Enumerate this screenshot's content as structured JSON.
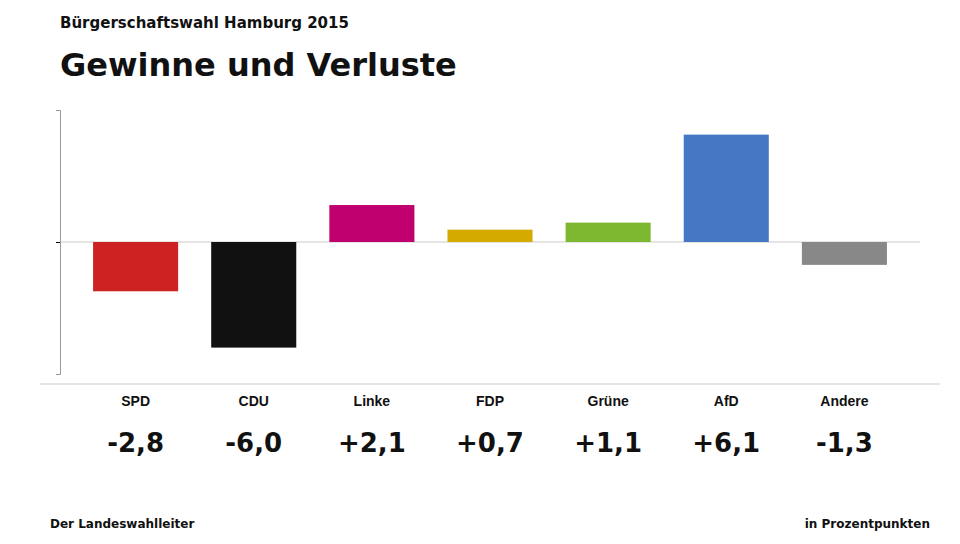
{
  "chart_data": {
    "type": "bar",
    "title": "Gewinne und Verluste",
    "subtitle": "Bürgerschaftswahl Hamburg 2015",
    "annotations": [
      "Der Landeswahlleiter",
      "in Prozentpunkten"
    ],
    "categories": [
      "SPD",
      "CDU",
      "Linke",
      "FDP",
      "Grüne",
      "AfD",
      "Andere"
    ],
    "values": [
      -2.8,
      -6.0,
      2.1,
      0.7,
      1.1,
      6.1,
      -1.3
    ],
    "value_labels": [
      "-2,8",
      "-6,0",
      "+2,1",
      "+0,7",
      "+1,1",
      "+6,1",
      "-1,3"
    ],
    "colors": [
      "#cc2222",
      "#111111",
      "#c0006e",
      "#d4aa00",
      "#7db72f",
      "#4477c4",
      "#888888"
    ],
    "ylim": [
      -7.5,
      7.5
    ],
    "yticks": [
      0
    ],
    "grid": true,
    "tick_labels": "x",
    "data_labels": true
  }
}
